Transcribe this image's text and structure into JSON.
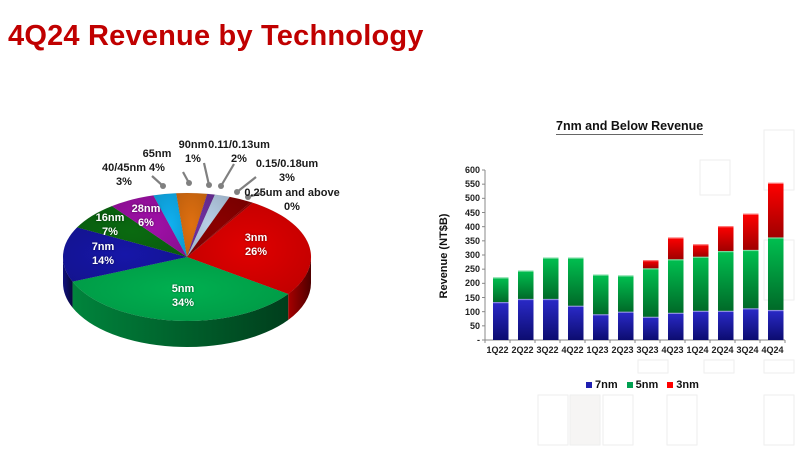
{
  "slide": {
    "title": "4Q24 Revenue by Technology"
  },
  "colors": {
    "title": "#c00000",
    "7nm": "#1f1fb0",
    "5nm": "#00b050",
    "3nm": "#ff0000"
  },
  "chart_data": [
    {
      "type": "pie",
      "title": "4Q24 Revenue by Technology",
      "style": "3d",
      "slices": [
        {
          "label": "3nm",
          "value": 26,
          "pct_label": "26%",
          "color": "#e00000"
        },
        {
          "label": "5nm",
          "value": 34,
          "pct_label": "34%",
          "color": "#00b050"
        },
        {
          "label": "7nm",
          "value": 14,
          "pct_label": "14%",
          "color": "#1616a8"
        },
        {
          "label": "16nm",
          "value": 7,
          "pct_label": "7%",
          "color": "#0a6a10"
        },
        {
          "label": "28nm",
          "value": 6,
          "pct_label": "6%",
          "color": "#a010a8"
        },
        {
          "label": "40/45nm",
          "value": 3,
          "pct_label": "3%",
          "color": "#10b0f0"
        },
        {
          "label": "65nm",
          "value": 4,
          "pct_label": "4%",
          "color": "#e07010"
        },
        {
          "label": "90nm",
          "value": 1,
          "pct_label": "1%",
          "color": "#7030a0"
        },
        {
          "label": "0.11/0.13um",
          "value": 2,
          "pct_label": "2%",
          "color": "#b8d0e8"
        },
        {
          "label": "0.15/0.18um",
          "value": 3,
          "pct_label": "3%",
          "color": "#8b0000"
        },
        {
          "label": "0.25um and above",
          "value": 0,
          "pct_label": "0%",
          "color": "#a00000"
        }
      ]
    },
    {
      "type": "bar",
      "stacked": true,
      "title": "7nm and Below Revenue",
      "xlabel": "",
      "ylabel": "Revenue (NT$B)",
      "ylim": [
        0,
        600
      ],
      "yticks": [
        "-",
        "50",
        "100",
        "150",
        "200",
        "250",
        "300",
        "350",
        "400",
        "450",
        "500",
        "550",
        "600"
      ],
      "categories": [
        "1Q22",
        "2Q22",
        "3Q22",
        "4Q22",
        "1Q23",
        "2Q23",
        "3Q23",
        "4Q23",
        "1Q24",
        "2Q24",
        "3Q24",
        "4Q24"
      ],
      "series": [
        {
          "name": "7nm",
          "values": [
            134,
            145,
            145,
            121,
            91,
            100,
            82,
            96,
            103,
            103,
            112,
            106
          ]
        },
        {
          "name": "5nm",
          "values": [
            87,
            100,
            146,
            170,
            140,
            128,
            171,
            189,
            191,
            211,
            206,
            256
          ]
        },
        {
          "name": "3nm",
          "values": [
            0,
            0,
            0,
            0,
            0,
            0,
            29,
            77,
            44,
            88,
            128,
            193
          ]
        }
      ],
      "legend": {
        "position": "bottom",
        "entries": [
          "7nm",
          "5nm",
          "3nm"
        ]
      },
      "grid": false
    }
  ]
}
